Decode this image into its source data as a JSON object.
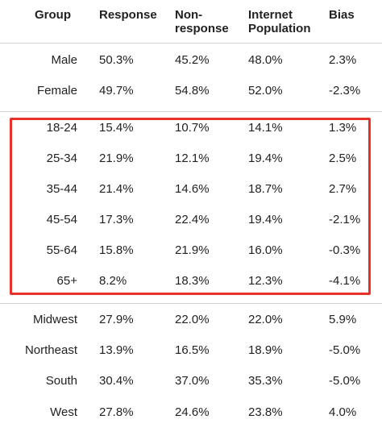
{
  "headers": {
    "group": "Group",
    "response": "Response",
    "nonresponse_line1": "Non-",
    "nonresponse_line2": "response",
    "internet_line1": "Internet",
    "internet_line2": "Population",
    "bias": "Bias"
  },
  "sections": {
    "gender": [
      {
        "group": "Male",
        "response": "50.3%",
        "nonresponse": "45.2%",
        "internet": "48.0%",
        "bias": "2.3%"
      },
      {
        "group": "Female",
        "response": "49.7%",
        "nonresponse": "54.8%",
        "internet": "52.0%",
        "bias": "-2.3%"
      }
    ],
    "age": [
      {
        "group": "18-24",
        "response": "15.4%",
        "nonresponse": "10.7%",
        "internet": "14.1%",
        "bias": "1.3%"
      },
      {
        "group": "25-34",
        "response": "21.9%",
        "nonresponse": "12.1%",
        "internet": "19.4%",
        "bias": "2.5%"
      },
      {
        "group": "35-44",
        "response": "21.4%",
        "nonresponse": "14.6%",
        "internet": "18.7%",
        "bias": "2.7%"
      },
      {
        "group": "45-54",
        "response": "17.3%",
        "nonresponse": "22.4%",
        "internet": "19.4%",
        "bias": "-2.1%"
      },
      {
        "group": "55-64",
        "response": "15.8%",
        "nonresponse": "21.9%",
        "internet": "16.0%",
        "bias": "-0.3%"
      },
      {
        "group": "65+",
        "response": "8.2%",
        "nonresponse": "18.3%",
        "internet": "12.3%",
        "bias": "-4.1%"
      }
    ],
    "region": [
      {
        "group": "Midwest",
        "response": "27.9%",
        "nonresponse": "22.0%",
        "internet": "22.0%",
        "bias": "5.9%"
      },
      {
        "group": "Northeast",
        "response": "13.9%",
        "nonresponse": "16.5%",
        "internet": "18.9%",
        "bias": "-5.0%"
      },
      {
        "group": "South",
        "response": "30.4%",
        "nonresponse": "37.0%",
        "internet": "35.3%",
        "bias": "-5.0%"
      },
      {
        "group": "West",
        "response": "27.8%",
        "nonresponse": "24.6%",
        "internet": "23.8%",
        "bias": "4.0%"
      }
    ]
  },
  "colors": {
    "highlight": "#e8312a",
    "divider": "#cfcfcf",
    "text": "#222222"
  }
}
